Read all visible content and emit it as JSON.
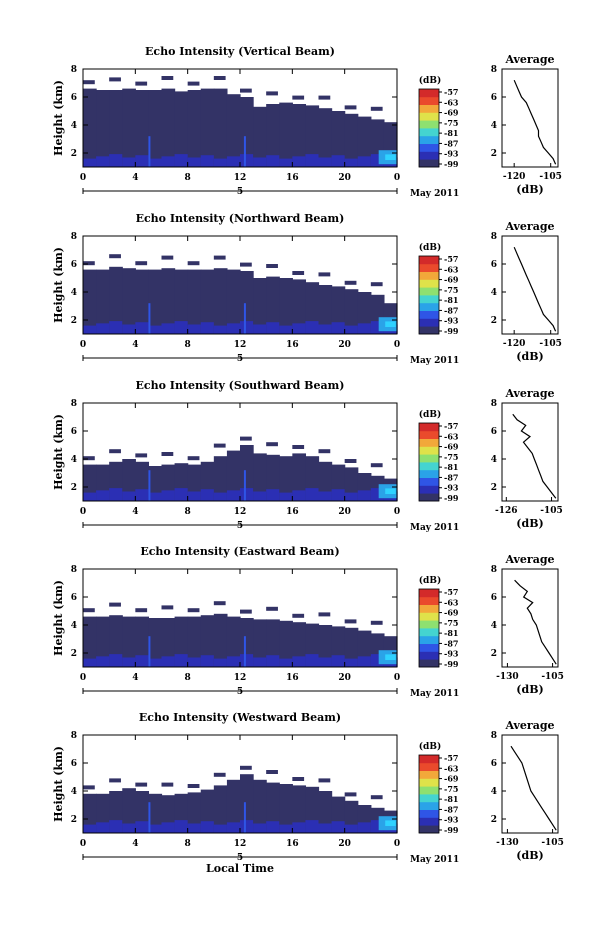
{
  "chart_data": [
    {
      "type": "heatmap",
      "title": "Echo Intensity (Vertical Beam)",
      "ylabel": "Height (km)",
      "xlabel": "",
      "colorbar_unit": "(dB)",
      "colorbar_ticks": [
        "-57",
        "-63",
        "-69",
        "-75",
        "-81",
        "-87",
        "-93",
        "-99"
      ],
      "xticks": [
        "0",
        "4",
        "8",
        "12",
        "16",
        "20",
        "0"
      ],
      "date_marker": "5",
      "date_label": "May 2011",
      "yticks": [
        "2",
        "4",
        "6",
        "8"
      ],
      "xlim": [
        0,
        24
      ],
      "ylim": [
        1,
        8
      ],
      "cloud_top": [
        6.6,
        6.5,
        6.5,
        6.6,
        6.5,
        6.5,
        6.6,
        6.4,
        6.5,
        6.6,
        6.6,
        6.2,
        6.0,
        5.3,
        5.5,
        5.6,
        5.5,
        5.4,
        5.2,
        5.0,
        4.8,
        4.6,
        4.4,
        4.2
      ],
      "avg_profile": {
        "title": "Average",
        "xlabel": "(dB)",
        "xticks": [
          "-120",
          "-105"
        ],
        "yticks": [
          "2",
          "4",
          "6",
          "8"
        ],
        "xlim": [
          -125,
          -102
        ],
        "height": [
          1.2,
          1.6,
          2.0,
          2.4,
          2.8,
          3.2,
          3.6,
          4.0,
          4.4,
          4.8,
          5.2,
          5.6,
          6.0,
          6.4,
          6.8,
          7.2
        ],
        "value": [
          -103,
          -104,
          -106,
          -108,
          -109,
          -110,
          -110,
          -111,
          -112,
          -113,
          -114,
          -115,
          -117,
          -118,
          -119,
          -120
        ]
      }
    },
    {
      "type": "heatmap",
      "title": "Echo Intensity (Northward Beam)",
      "ylabel": "Height (km)",
      "xlabel": "",
      "colorbar_unit": "(dB)",
      "colorbar_ticks": [
        "-57",
        "-63",
        "-69",
        "-75",
        "-81",
        "-87",
        "-93",
        "-99"
      ],
      "xticks": [
        "0",
        "4",
        "8",
        "12",
        "16",
        "20",
        "0"
      ],
      "date_marker": "5",
      "date_label": "May 2011",
      "yticks": [
        "2",
        "4",
        "6",
        "8"
      ],
      "xlim": [
        0,
        24
      ],
      "ylim": [
        1,
        8
      ],
      "cloud_top": [
        5.6,
        5.6,
        5.8,
        5.7,
        5.6,
        5.6,
        5.7,
        5.6,
        5.6,
        5.6,
        5.7,
        5.6,
        5.5,
        5.0,
        5.1,
        5.0,
        4.9,
        4.7,
        4.5,
        4.4,
        4.2,
        4.0,
        3.8,
        3.2
      ],
      "avg_profile": {
        "title": "Average",
        "xlabel": "(dB)",
        "xticks": [
          "-120",
          "-105"
        ],
        "yticks": [
          "2",
          "4",
          "6",
          "8"
        ],
        "xlim": [
          -125,
          -102
        ],
        "height": [
          1.2,
          1.6,
          2.0,
          2.4,
          2.8,
          3.2,
          3.6,
          4.0,
          4.4,
          4.8,
          5.2,
          5.6,
          6.0,
          6.4,
          6.8,
          7.2
        ],
        "value": [
          -103,
          -104,
          -106,
          -108,
          -109,
          -110,
          -111,
          -112,
          -113,
          -114,
          -115,
          -116,
          -117,
          -118,
          -119,
          -120
        ]
      }
    },
    {
      "type": "heatmap",
      "title": "Echo Intensity (Southward Beam)",
      "ylabel": "Height (km)",
      "xlabel": "",
      "colorbar_unit": "(dB)",
      "colorbar_ticks": [
        "-57",
        "-63",
        "-69",
        "-75",
        "-81",
        "-87",
        "-93",
        "-99"
      ],
      "xticks": [
        "0",
        "4",
        "8",
        "12",
        "16",
        "20",
        "0"
      ],
      "date_marker": "5",
      "date_label": "May 2011",
      "yticks": [
        "2",
        "4",
        "6",
        "8"
      ],
      "xlim": [
        0,
        24
      ],
      "ylim": [
        1,
        8
      ],
      "cloud_top": [
        3.6,
        3.6,
        3.8,
        4.0,
        3.8,
        3.5,
        3.6,
        3.7,
        3.6,
        3.8,
        4.2,
        4.6,
        5.0,
        4.4,
        4.3,
        4.2,
        4.4,
        4.2,
        3.8,
        3.6,
        3.4,
        3.0,
        2.8,
        2.6
      ],
      "avg_profile": {
        "title": "Average",
        "xlabel": "(dB)",
        "xticks": [
          "-126",
          "-105"
        ],
        "yticks": [
          "2",
          "4",
          "6",
          "8"
        ],
        "xlim": [
          -128,
          -102
        ],
        "height": [
          1.2,
          1.6,
          2.0,
          2.4,
          2.8,
          3.2,
          3.6,
          4.0,
          4.4,
          4.8,
          5.2,
          5.6,
          6.0,
          6.4,
          6.8,
          7.2
        ],
        "value": [
          -103,
          -105,
          -107,
          -109,
          -110,
          -111,
          -112,
          -113,
          -114,
          -116,
          -118,
          -115,
          -119,
          -117,
          -121,
          -123
        ]
      }
    },
    {
      "type": "heatmap",
      "title": "Echo Intensity (Eastward Beam)",
      "ylabel": "Height (km)",
      "xlabel": "",
      "colorbar_unit": "(dB)",
      "colorbar_ticks": [
        "-57",
        "-63",
        "-69",
        "-75",
        "-81",
        "-87",
        "-93",
        "-99"
      ],
      "xticks": [
        "0",
        "4",
        "8",
        "12",
        "16",
        "20",
        "0"
      ],
      "date_marker": "5",
      "date_label": "May 2011",
      "yticks": [
        "2",
        "4",
        "6",
        "8"
      ],
      "xlim": [
        0,
        24
      ],
      "ylim": [
        1,
        8
      ],
      "cloud_top": [
        4.6,
        4.6,
        4.7,
        4.6,
        4.6,
        4.5,
        4.5,
        4.6,
        4.6,
        4.7,
        4.8,
        4.6,
        4.5,
        4.4,
        4.4,
        4.3,
        4.2,
        4.1,
        4.0,
        3.9,
        3.8,
        3.6,
        3.4,
        3.2
      ],
      "avg_profile": {
        "title": "Average",
        "xlabel": "(dB)",
        "xticks": [
          "-130",
          "-105"
        ],
        "yticks": [
          "2",
          "4",
          "6",
          "8"
        ],
        "xlim": [
          -133,
          -102
        ],
        "height": [
          1.2,
          1.6,
          2.0,
          2.4,
          2.8,
          3.2,
          3.6,
          4.0,
          4.4,
          4.8,
          5.2,
          5.6,
          6.0,
          6.4,
          6.8,
          7.2
        ],
        "value": [
          -103,
          -105,
          -107,
          -109,
          -111,
          -112,
          -113,
          -114,
          -116,
          -117,
          -119,
          -116,
          -121,
          -119,
          -123,
          -126
        ]
      }
    },
    {
      "type": "heatmap",
      "title": "Echo Intensity (Westward Beam)",
      "ylabel": "Height (km)",
      "xlabel": "Local Time",
      "colorbar_unit": "(dB)",
      "colorbar_ticks": [
        "-57",
        "-63",
        "-69",
        "-75",
        "-81",
        "-87",
        "-93",
        "-99"
      ],
      "xticks": [
        "0",
        "4",
        "8",
        "12",
        "16",
        "20",
        "0"
      ],
      "date_marker": "5",
      "date_label": "May 2011",
      "yticks": [
        "2",
        "4",
        "6",
        "8"
      ],
      "xlim": [
        0,
        24
      ],
      "ylim": [
        1,
        8
      ],
      "cloud_top": [
        3.8,
        3.8,
        4.0,
        4.2,
        4.0,
        3.8,
        3.7,
        3.8,
        3.9,
        4.1,
        4.4,
        4.8,
        5.2,
        4.8,
        4.6,
        4.5,
        4.4,
        4.3,
        4.0,
        3.6,
        3.3,
        3.0,
        2.8,
        2.6
      ],
      "avg_profile": {
        "title": "Average",
        "xlabel": "(dB)",
        "xticks": [
          "-130",
          "-105"
        ],
        "yticks": [
          "2",
          "4",
          "6",
          "8"
        ],
        "xlim": [
          -133,
          -102
        ],
        "height": [
          1.2,
          1.6,
          2.0,
          2.4,
          2.8,
          3.2,
          3.6,
          4.0,
          4.4,
          4.8,
          5.2,
          5.6,
          6.0,
          6.4,
          6.8,
          7.2
        ],
        "value": [
          -103,
          -105,
          -107,
          -109,
          -111,
          -113,
          -115,
          -117,
          -118,
          -119,
          -120,
          -121,
          -122,
          -124,
          -126,
          -128
        ]
      }
    }
  ],
  "colors": {
    "palette": [
      "#333366",
      "#2b2fb4",
      "#2f55e6",
      "#2aa3e8",
      "#44d4d0",
      "#8ee070",
      "#dfe24a",
      "#f2a83a",
      "#ea4a2c",
      "#d32a2a"
    ],
    "strong_echo": "#2fd2ff"
  }
}
